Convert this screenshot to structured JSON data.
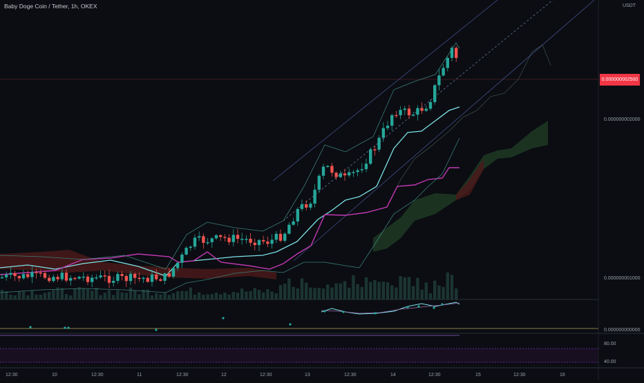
{
  "header": {
    "symbol_title": "Baby Doge Coin / Tether, 1h, OKEX",
    "currency": "USDT"
  },
  "price_axis": {
    "labels": [
      "0.000000002000",
      "0.000000001000",
      "0.000000000000"
    ],
    "last_price_badge": "0.000000002500"
  },
  "rsi_axis": {
    "labels": [
      "80.00",
      "40.00"
    ]
  },
  "time_axis": {
    "labels": [
      "12:30",
      "10",
      "12:30",
      "11",
      "12:30",
      "12",
      "12:30",
      "13",
      "12:30",
      "14",
      "12:30",
      "15",
      "12:30",
      "16"
    ]
  },
  "colors": {
    "background": "#0b0d12",
    "up_candle": "#26a69a",
    "down_candle": "#ef5350",
    "ma_line": "#7de3e8",
    "kijun_line": "#c239b3",
    "cloud_bull": "#1f3a25",
    "cloud_bear": "#4a1a1a",
    "rsi_band": "#7b2cbf"
  },
  "chart_data": {
    "type": "candlestick",
    "title": "Baby Doge Coin / Tether, 1h, OKEX",
    "xlabel": "",
    "ylabel": "USDT",
    "ylim": [
      0,
      3.2e-09
    ],
    "x_ticks": [
      "12:30",
      "10",
      "12:30",
      "11",
      "12:30",
      "12",
      "12:30",
      "13",
      "12:30",
      "14",
      "12:30",
      "15",
      "12:30",
      "16"
    ],
    "y_ticks": [
      2e-09,
      1e-09,
      0
    ],
    "last_price": 2.5e-09,
    "grid": true,
    "indicators": [
      "Bollinger Bands",
      "Ichimoku Cloud",
      "Linear Regression Channel",
      "Volume",
      "RSI"
    ]
  }
}
